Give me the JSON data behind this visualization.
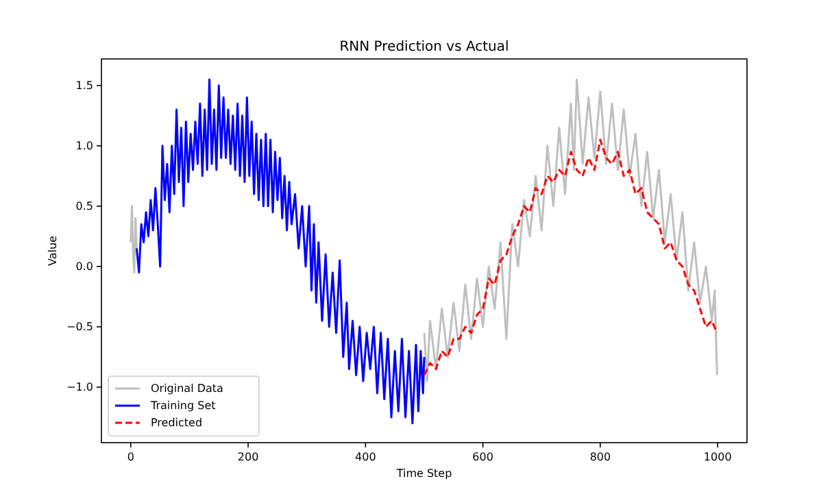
{
  "chart_data": {
    "type": "line",
    "title": "RNN Prediction vs Actual",
    "xlabel": "Time Step",
    "ylabel": "Value",
    "xlim": [
      -50,
      1050
    ],
    "ylim": [
      -1.46,
      1.72
    ],
    "xticks": [
      0,
      200,
      400,
      600,
      800,
      1000
    ],
    "yticks": [
      {
        "value": -1.0,
        "label": "−1.0"
      },
      {
        "value": -0.5,
        "label": "−0.5"
      },
      {
        "value": 0,
        "label": "0.0"
      },
      {
        "value": 0.5,
        "label": "0.5"
      },
      {
        "value": 1.0,
        "label": "1.0"
      },
      {
        "value": 1.5,
        "label": "1.5"
      }
    ],
    "legend": "bottom left",
    "grid": false,
    "series": [
      {
        "name": "Original Data",
        "color": "#bfbfbf",
        "line_style": "solid",
        "x": [
          0,
          2,
          4,
          6,
          8,
          10,
          12,
          500,
          505,
          510,
          520,
          530,
          540,
          550,
          560,
          570,
          580,
          590,
          600,
          610,
          620,
          630,
          640,
          650,
          660,
          670,
          680,
          690,
          700,
          710,
          720,
          730,
          740,
          750,
          755,
          760,
          770,
          780,
          790,
          800,
          810,
          820,
          830,
          840,
          850,
          860,
          870,
          880,
          890,
          900,
          910,
          920,
          930,
          940,
          950,
          960,
          970,
          980,
          990,
          995,
          999
        ],
        "values": [
          0.2,
          0.5,
          0.1,
          -0.05,
          0.4,
          0.15,
          null,
          -0.55,
          -0.95,
          -0.45,
          -0.85,
          -0.35,
          -0.75,
          -0.3,
          -0.7,
          -0.15,
          -0.6,
          -0.1,
          -0.5,
          0.0,
          -0.35,
          0.2,
          -0.6,
          0.35,
          0.0,
          0.55,
          0.25,
          0.75,
          0.3,
          1.0,
          0.5,
          1.15,
          0.6,
          1.35,
          0.8,
          1.55,
          0.85,
          1.4,
          0.9,
          1.45,
          0.85,
          1.35,
          0.8,
          1.3,
          0.75,
          1.1,
          0.5,
          0.95,
          0.4,
          0.8,
          0.2,
          0.6,
          0.05,
          0.45,
          -0.2,
          0.2,
          -0.3,
          0.0,
          -0.45,
          -0.2,
          -0.9
        ]
      },
      {
        "name": "Training Set",
        "color": "#0000ff",
        "line_style": "solid",
        "x": [
          10,
          14,
          18,
          22,
          26,
          30,
          34,
          38,
          42,
          46,
          50,
          54,
          58,
          62,
          66,
          70,
          74,
          78,
          82,
          86,
          90,
          94,
          98,
          102,
          106,
          110,
          114,
          118,
          122,
          126,
          130,
          134,
          138,
          142,
          146,
          150,
          154,
          158,
          162,
          166,
          170,
          174,
          178,
          182,
          186,
          190,
          194,
          198,
          202,
          206,
          210,
          214,
          218,
          222,
          226,
          230,
          234,
          238,
          242,
          246,
          250,
          254,
          258,
          262,
          266,
          270,
          274,
          280,
          286,
          292,
          298,
          304,
          308,
          312,
          316,
          320,
          326,
          332,
          338,
          344,
          350,
          356,
          362,
          368,
          372,
          378,
          384,
          390,
          396,
          402,
          408,
          414,
          420,
          426,
          432,
          438,
          444,
          450,
          456,
          462,
          468,
          474,
          480,
          486,
          490,
          494,
          498,
          500
        ],
        "values": [
          0.15,
          -0.05,
          0.35,
          0.2,
          0.45,
          0.25,
          0.55,
          0.3,
          0.65,
          0.35,
          0.0,
          1.0,
          0.55,
          0.85,
          0.45,
          1.0,
          0.6,
          1.3,
          0.7,
          1.15,
          0.5,
          1.2,
          0.7,
          1.1,
          0.8,
          1.2,
          0.85,
          1.35,
          0.75,
          1.3,
          0.8,
          1.55,
          0.85,
          1.3,
          0.8,
          1.5,
          0.9,
          1.4,
          0.9,
          1.3,
          0.85,
          1.25,
          0.8,
          1.35,
          0.75,
          1.25,
          0.7,
          1.4,
          0.75,
          1.2,
          0.6,
          1.1,
          0.55,
          1.05,
          0.5,
          1.1,
          0.5,
          1.05,
          0.45,
          0.95,
          0.55,
          0.9,
          0.4,
          0.75,
          0.3,
          0.7,
          0.35,
          0.6,
          0.15,
          0.5,
          0.0,
          0.5,
          -0.2,
          0.35,
          -0.3,
          0.2,
          -0.45,
          0.1,
          -0.5,
          -0.05,
          -0.55,
          0.05,
          -0.75,
          -0.3,
          -0.85,
          -0.45,
          -0.9,
          -0.5,
          -0.95,
          -0.55,
          -0.85,
          -0.5,
          -1.05,
          -0.55,
          -1.1,
          -0.6,
          -1.25,
          -0.7,
          -1.2,
          -0.6,
          -1.25,
          -0.7,
          -1.3,
          -0.65,
          -1.2,
          -0.7,
          -1.05,
          -0.75
        ]
      },
      {
        "name": "Predicted",
        "color": "#ff0000",
        "line_style": "dashed",
        "x": [
          500,
          510,
          520,
          530,
          540,
          550,
          560,
          570,
          580,
          590,
          600,
          610,
          620,
          630,
          640,
          650,
          660,
          670,
          680,
          690,
          700,
          710,
          720,
          730,
          740,
          750,
          760,
          770,
          780,
          790,
          800,
          810,
          820,
          830,
          840,
          850,
          860,
          870,
          880,
          890,
          900,
          910,
          920,
          930,
          940,
          950,
          960,
          970,
          980,
          990,
          999
        ],
        "values": [
          -0.9,
          -0.8,
          -0.85,
          -0.7,
          -0.75,
          -0.6,
          -0.6,
          -0.5,
          -0.55,
          -0.4,
          -0.35,
          -0.1,
          -0.15,
          0.05,
          0.1,
          0.25,
          0.35,
          0.5,
          0.45,
          0.65,
          0.6,
          0.75,
          0.7,
          0.8,
          0.75,
          0.95,
          0.8,
          0.75,
          0.9,
          0.8,
          1.05,
          0.9,
          0.85,
          0.95,
          0.75,
          0.8,
          0.6,
          0.65,
          0.45,
          0.4,
          0.35,
          0.15,
          0.2,
          0.05,
          0.0,
          -0.15,
          -0.2,
          -0.35,
          -0.5,
          -0.45,
          -0.55
        ]
      }
    ]
  }
}
